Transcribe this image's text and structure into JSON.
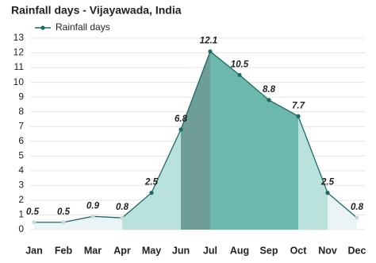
{
  "chart_data": {
    "type": "area",
    "title": "Rainfall days - Vijayawada, India",
    "categories": [
      "Jan",
      "Feb",
      "Mar",
      "Apr",
      "May",
      "Jun",
      "Jul",
      "Aug",
      "Sep",
      "Oct",
      "Nov",
      "Dec"
    ],
    "series": [
      {
        "name": "Rainfall days",
        "color": "#1d6a67",
        "values": [
          0.5,
          0.5,
          0.9,
          0.8,
          2.5,
          6.8,
          12.1,
          10.5,
          8.8,
          7.7,
          2.5,
          0.8
        ]
      }
    ],
    "ylim": [
      0,
      13
    ],
    "yticks": [
      0,
      1,
      2,
      3,
      4,
      5,
      6,
      7,
      8,
      9,
      10,
      11,
      12,
      13
    ],
    "grid": true,
    "legend": "top-left"
  }
}
